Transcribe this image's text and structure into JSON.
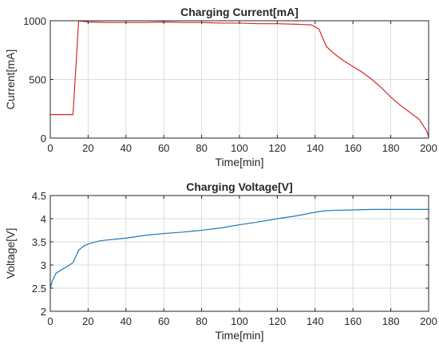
{
  "chart_data": [
    {
      "type": "line",
      "title": "Charging Current[mA]",
      "xlabel": "Time[min]",
      "ylabel": "Current[mA]",
      "xlim": [
        0,
        200
      ],
      "ylim": [
        0,
        1000
      ],
      "xticks": [
        0,
        20,
        40,
        60,
        80,
        100,
        120,
        140,
        160,
        180,
        200
      ],
      "yticks": [
        0,
        500,
        1000
      ],
      "grid": true,
      "color": "#d62728",
      "x": [
        0,
        12,
        15,
        20,
        30,
        40,
        50,
        60,
        70,
        80,
        90,
        100,
        110,
        120,
        130,
        138,
        142,
        146,
        150,
        155,
        160,
        165,
        170,
        175,
        180,
        185,
        190,
        195,
        199,
        200
      ],
      "y": [
        200,
        200,
        1000,
        990,
        985,
        985,
        985,
        990,
        985,
        985,
        980,
        980,
        975,
        975,
        970,
        965,
        930,
        780,
        720,
        660,
        610,
        560,
        500,
        430,
        350,
        280,
        220,
        160,
        60,
        10
      ]
    },
    {
      "type": "line",
      "title": "Charging Voltage[V]",
      "xlabel": "Time[min]",
      "ylabel": "Voltage[V]",
      "xlim": [
        0,
        200
      ],
      "ylim": [
        2,
        4.5
      ],
      "xticks": [
        0,
        20,
        40,
        60,
        80,
        100,
        120,
        140,
        160,
        180,
        200
      ],
      "yticks": [
        2,
        2.5,
        3,
        3.5,
        4,
        4.5
      ],
      "grid": true,
      "color": "#1f77b4",
      "x": [
        0,
        1,
        3,
        6,
        9,
        12,
        15,
        18,
        22,
        26,
        30,
        35,
        40,
        50,
        60,
        70,
        80,
        90,
        100,
        110,
        120,
        130,
        140,
        145,
        150,
        160,
        170,
        180,
        190,
        200
      ],
      "y": [
        2.5,
        2.65,
        2.82,
        2.9,
        2.97,
        3.05,
        3.32,
        3.42,
        3.48,
        3.52,
        3.54,
        3.56,
        3.58,
        3.64,
        3.68,
        3.71,
        3.75,
        3.8,
        3.87,
        3.93,
        4.0,
        4.06,
        4.14,
        4.17,
        4.18,
        4.19,
        4.2,
        4.2,
        4.2,
        4.2
      ]
    }
  ]
}
